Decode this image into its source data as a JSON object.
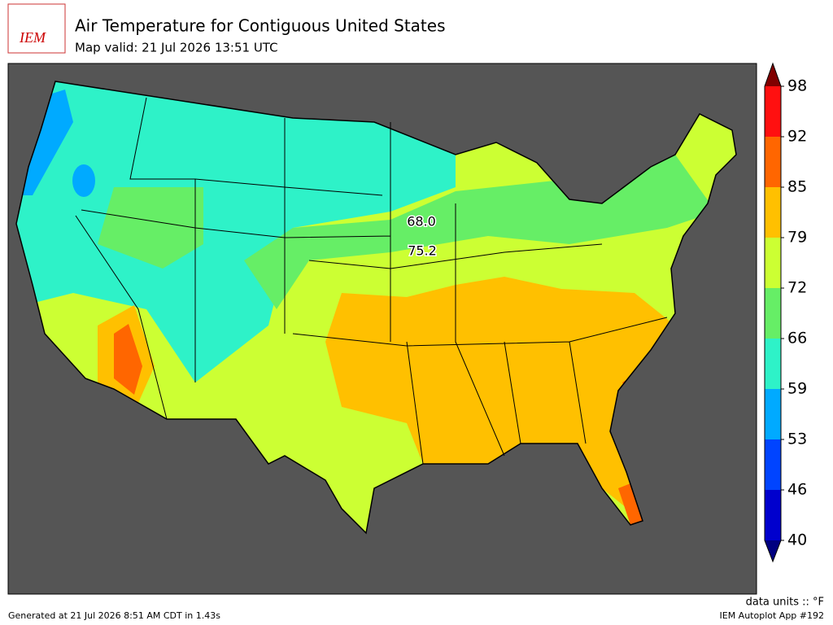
{
  "header": {
    "logo": "IEM",
    "title": "Air Temperature for Contiguous United States",
    "subtitle": "Map valid: 21 Jul 2026 13:51 UTC"
  },
  "map": {
    "labels": [
      "68.0",
      "75.2"
    ]
  },
  "colorbar": {
    "ticks": [
      40,
      46,
      53,
      59,
      66,
      72,
      79,
      85,
      92,
      98
    ],
    "colors": [
      "#0000cd",
      "#0044ff",
      "#00aaff",
      "#2ef2c8",
      "#66ee66",
      "#ccff33",
      "#ffc000",
      "#ff6600",
      "#ff1010"
    ],
    "under_color": "#000080",
    "over_color": "#800000"
  },
  "footer": {
    "units": "data units :: °F",
    "generated": "Generated at 21 Jul 2026 8:51 AM CDT in 1.43s",
    "app": "IEM Autoplot App #192"
  }
}
